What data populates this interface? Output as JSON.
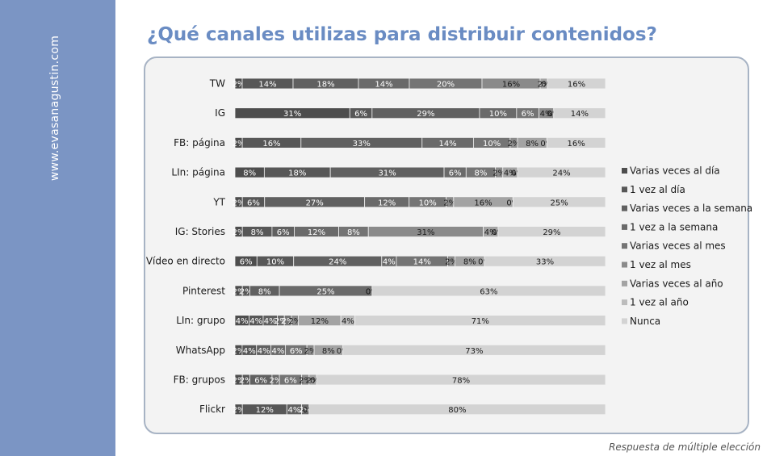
{
  "watermark": "www.evasanagustin.com",
  "title": "¿Qué canales utilizas para distribuir contenidos?",
  "footnote": "Respuesta de múltiple elección",
  "chart_data": {
    "type": "bar",
    "orientation": "horizontal",
    "stacking": "percent",
    "title": "",
    "xlabel": "",
    "ylabel": "",
    "xlim": [
      0,
      100
    ],
    "grid": false,
    "legend_position": "right",
    "categories": [
      "TW",
      "IG",
      "FB: página",
      "LIn: página",
      "YT",
      "IG: Stories",
      "Vídeo en directo",
      "Pinterest",
      "LIn: grupo",
      "WhatsApp",
      "FB: grupos",
      "Flickr"
    ],
    "series": [
      {
        "name": "Varias veces al día",
        "color": "#4d4d4d",
        "label_color": "#ffffff",
        "values": [
          2,
          31,
          2,
          8,
          2,
          2,
          6,
          2,
          4,
          2,
          2,
          2
        ]
      },
      {
        "name": "1 vez al día",
        "color": "#575757",
        "label_color": "#ffffff",
        "values": [
          14,
          6,
          16,
          18,
          6,
          8,
          10,
          2,
          4,
          4,
          2,
          12
        ]
      },
      {
        "name": "Varias veces a la semana",
        "color": "#606060",
        "label_color": "#ffffff",
        "values": [
          18,
          29,
          33,
          31,
          27,
          6,
          24,
          8,
          4,
          4,
          6,
          4
        ]
      },
      {
        "name": "1 vez a la semana",
        "color": "#6a6a6a",
        "label_color": "#ffffff",
        "values": [
          14,
          10,
          14,
          6,
          12,
          12,
          4,
          25,
          2,
          4,
          2,
          2
        ]
      },
      {
        "name": "Varias veces al mes",
        "color": "#747474",
        "label_color": "#ffffff",
        "values": [
          20,
          6,
          10,
          8,
          10,
          8,
          14,
          0,
          2,
          6,
          6,
          0
        ]
      },
      {
        "name": "1 vez al mes",
        "color": "#8a8a8a",
        "label_color": "#1a1a1a",
        "values": [
          16,
          4,
          2,
          2,
          2,
          31,
          2,
          0,
          2,
          2,
          2,
          0
        ]
      },
      {
        "name": "Varias veces al año",
        "color": "#a3a3a3",
        "label_color": "#1a1a1a",
        "values": [
          2,
          0,
          8,
          4,
          16,
          4,
          8,
          0,
          12,
          8,
          2,
          0
        ]
      },
      {
        "name": "1 vez al año",
        "color": "#bcbcbc",
        "label_color": "#1a1a1a",
        "values": [
          0,
          0,
          0,
          0,
          0,
          0,
          0,
          0,
          4,
          0,
          0,
          0
        ]
      },
      {
        "name": "Nunca",
        "color": "#d3d3d3",
        "label_color": "#1a1a1a",
        "values": [
          16,
          14,
          16,
          24,
          25,
          29,
          33,
          63,
          71,
          73,
          78,
          80
        ]
      }
    ]
  }
}
